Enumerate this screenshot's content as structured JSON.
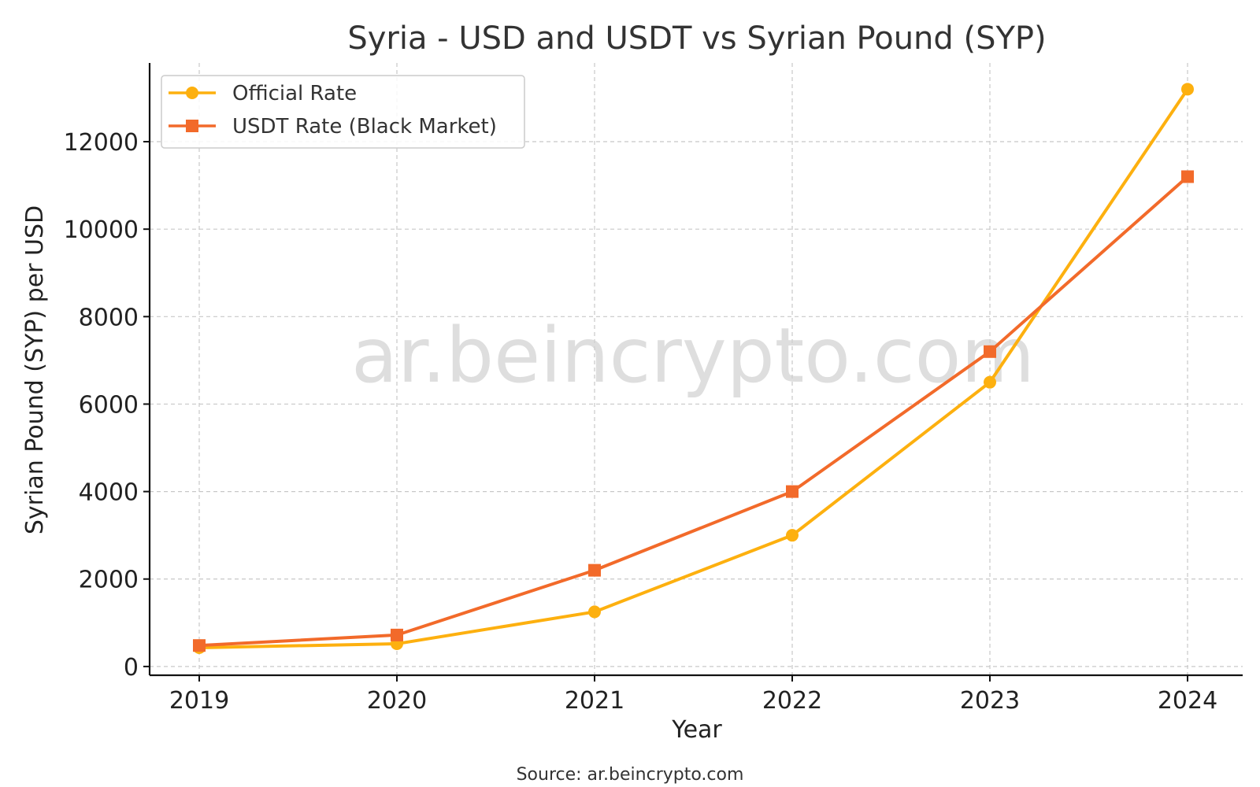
{
  "chart_data": {
    "type": "line",
    "title": "Syria - USD and USDT vs Syrian Pound (SYP)",
    "xlabel": "Year",
    "ylabel": "Syrian Pound (SYP) per USD",
    "categories": [
      "2019",
      "2020",
      "2021",
      "2022",
      "2023",
      "2024"
    ],
    "yticks": [
      0,
      2000,
      4000,
      6000,
      8000,
      10000,
      12000
    ],
    "ylim": [
      -200,
      13800
    ],
    "grid": true,
    "legend_position": "top-left",
    "series": [
      {
        "name": "Official Rate",
        "marker": "circle",
        "color": "#FDB00F",
        "values": [
          430,
          520,
          1250,
          3000,
          6500,
          13200
        ]
      },
      {
        "name": "USDT Rate (Black Market)",
        "marker": "square",
        "color": "#F26A2A",
        "values": [
          480,
          720,
          2200,
          4000,
          7200,
          11200
        ]
      }
    ]
  },
  "watermark": "ar.beincrypto.com",
  "source": "Source: ar.beincrypto.com"
}
